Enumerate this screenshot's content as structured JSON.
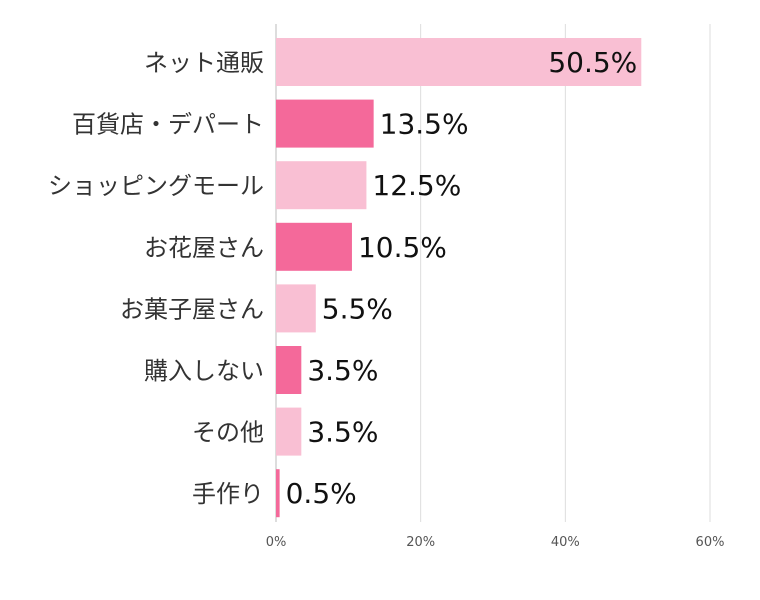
{
  "chart_data": {
    "type": "bar",
    "orientation": "horizontal",
    "categories": [
      "ネット通販",
      "百貨店・デパート",
      "ショッピングモール",
      "お花屋さん",
      "お菓子屋さん",
      "購入しない",
      "その他",
      "手作り"
    ],
    "values": [
      50.5,
      13.5,
      12.5,
      10.5,
      5.5,
      3.5,
      3.5,
      0.5
    ],
    "value_labels": [
      "50.5%",
      "13.5%",
      "12.5%",
      "10.5%",
      "5.5%",
      "3.5%",
      "3.5%",
      "0.5%"
    ],
    "xlim": [
      0,
      60
    ],
    "xticks": [
      0,
      20,
      40,
      60
    ],
    "xtick_labels": [
      "0%",
      "20%",
      "40%",
      "60%"
    ],
    "grid": true,
    "colors": [
      "#f9bfd3",
      "#f4699a"
    ]
  }
}
